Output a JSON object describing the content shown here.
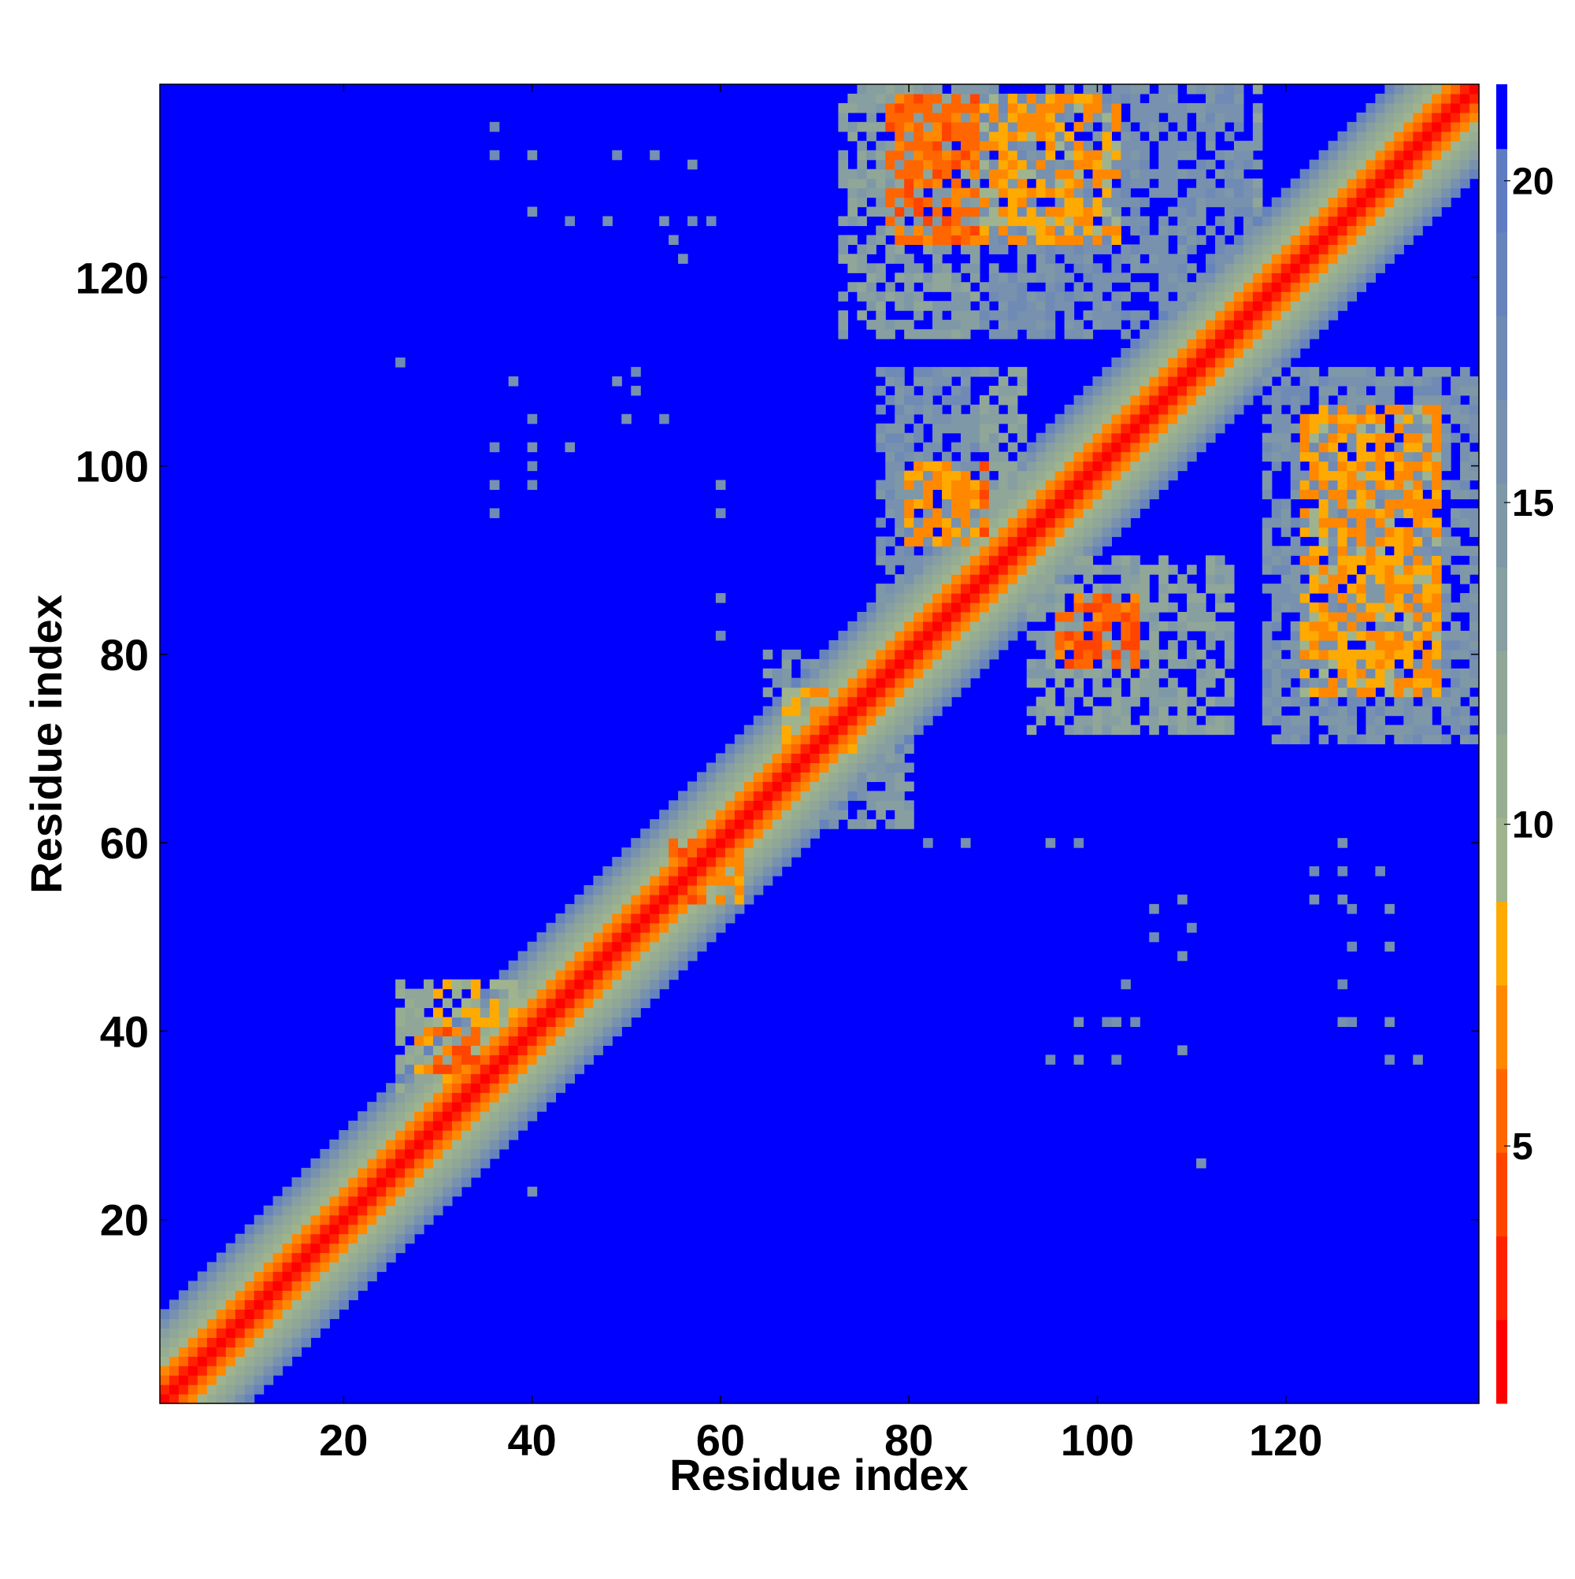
{
  "chart_data": {
    "type": "heatmap",
    "title": "",
    "xlabel": "Residue index",
    "ylabel": "Residue index",
    "xlim": [
      1,
      140
    ],
    "ylim": [
      1,
      140
    ],
    "x_ticks": [
      20,
      40,
      60,
      80,
      100,
      120
    ],
    "y_ticks": [
      20,
      40,
      60,
      80,
      100,
      120
    ],
    "colorbar": {
      "range": [
        1,
        21.5
      ],
      "ticks": [
        5,
        10,
        15,
        20
      ],
      "levels": [
        {
          "upper": 2.3,
          "color": "#ff0000"
        },
        {
          "upper": 3.6,
          "color": "#ff2200"
        },
        {
          "upper": 4.9,
          "color": "#ff4400"
        },
        {
          "upper": 6.2,
          "color": "#ff6600"
        },
        {
          "upper": 7.5,
          "color": "#ff8800"
        },
        {
          "upper": 8.8,
          "color": "#ffaa00"
        },
        {
          "upper": 10.1,
          "color": "#9fb48e"
        },
        {
          "upper": 11.4,
          "color": "#97ad92"
        },
        {
          "upper": 12.7,
          "color": "#8fa699"
        },
        {
          "upper": 14.0,
          "color": "#879fa0"
        },
        {
          "upper": 15.3,
          "color": "#7f98a7"
        },
        {
          "upper": 16.6,
          "color": "#7791ae"
        },
        {
          "upper": 17.9,
          "color": "#6f8ab5"
        },
        {
          "upper": 19.2,
          "color": "#6783bc"
        },
        {
          "upper": 20.5,
          "color": "#5f7cc3"
        },
        {
          "upper": 21.5,
          "color": "#0000ff"
        }
      ]
    },
    "background_color": "#0000ff",
    "diagonal_profile": [
      {
        "offset": 0,
        "value": 1.5
      },
      {
        "offset": 1,
        "value": 3.0
      },
      {
        "offset": 2,
        "value": 5.5
      },
      {
        "offset": 3,
        "value": 7.0
      },
      {
        "offset": 4,
        "value": 9.5
      },
      {
        "offset": 5,
        "value": 11.0
      },
      {
        "offset": 6,
        "value": 12.5
      },
      {
        "offset": 7,
        "value": 14.0
      },
      {
        "offset": 8,
        "value": 16.0
      },
      {
        "offset": 9,
        "value": 18.5
      }
    ],
    "contact_regions": [
      {
        "x": [
          26,
          38
        ],
        "y": [
          34,
          45
        ],
        "value": 11.5
      },
      {
        "x": [
          28,
          34
        ],
        "y": [
          36,
          40
        ],
        "value": 7.5
      },
      {
        "x": [
          55,
          62
        ],
        "y": [
          54,
          60
        ],
        "value": 8.0
      },
      {
        "x": [
          67,
          74
        ],
        "y": [
          70,
          76
        ],
        "value": 8.5
      },
      {
        "x": [
          65,
          80
        ],
        "y": [
          62,
          80
        ],
        "value": 15.0
      },
      {
        "x": [
          77,
          92
        ],
        "y": [
          85,
          110
        ],
        "value": 15.5
      },
      {
        "x": [
          80,
          88
        ],
        "y": [
          92,
          100
        ],
        "value": 7.5
      },
      {
        "x": [
          93,
          114
        ],
        "y": [
          72,
          90
        ],
        "value": 15.5
      },
      {
        "x": [
          96,
          104
        ],
        "y": [
          79,
          86
        ],
        "value": 7.5
      },
      {
        "x": [
          73,
          117
        ],
        "y": [
          114,
          140
        ],
        "value": 16.0
      },
      {
        "x": [
          78,
          102
        ],
        "y": [
          124,
          139
        ],
        "value": 8.0
      },
      {
        "x": [
          118,
          140
        ],
        "y": [
          71,
          110
        ],
        "value": 15.5
      },
      {
        "x": [
          122,
          136
        ],
        "y": [
          76,
          106
        ],
        "value": 8.0
      }
    ],
    "scattered_contacts": [
      {
        "x": 36,
        "y": 136,
        "value": 17.0
      },
      {
        "x": 36,
        "y": 133,
        "value": 17.0
      },
      {
        "x": 40,
        "y": 133,
        "value": 16.5
      },
      {
        "x": 40,
        "y": 127,
        "value": 16.5
      },
      {
        "x": 44,
        "y": 126,
        "value": 17.0
      },
      {
        "x": 48,
        "y": 126,
        "value": 16.5
      },
      {
        "x": 49,
        "y": 133,
        "value": 17.0
      },
      {
        "x": 53,
        "y": 133,
        "value": 16.5
      },
      {
        "x": 54,
        "y": 126,
        "value": 16.0
      },
      {
        "x": 55,
        "y": 124,
        "value": 16.0
      },
      {
        "x": 57,
        "y": 132,
        "value": 16.5
      },
      {
        "x": 57,
        "y": 126,
        "value": 17.0
      },
      {
        "x": 56,
        "y": 122,
        "value": 16.5
      },
      {
        "x": 59,
        "y": 126,
        "value": 17.0
      },
      {
        "x": 26,
        "y": 111,
        "value": 17.0
      },
      {
        "x": 38,
        "y": 109,
        "value": 16.5
      },
      {
        "x": 49,
        "y": 109,
        "value": 16.5
      },
      {
        "x": 51,
        "y": 110,
        "value": 17.0
      },
      {
        "x": 51,
        "y": 108,
        "value": 16.5
      },
      {
        "x": 50,
        "y": 105,
        "value": 16.5
      },
      {
        "x": 54,
        "y": 105,
        "value": 17.0
      },
      {
        "x": 40,
        "y": 105,
        "value": 17.0
      },
      {
        "x": 36,
        "y": 102,
        "value": 17.0
      },
      {
        "x": 40,
        "y": 102,
        "value": 16.5
      },
      {
        "x": 44,
        "y": 102,
        "value": 16.5
      },
      {
        "x": 40,
        "y": 100,
        "value": 17.0
      },
      {
        "x": 36,
        "y": 98,
        "value": 16.5
      },
      {
        "x": 40,
        "y": 98,
        "value": 17.0
      },
      {
        "x": 36,
        "y": 95,
        "value": 17.0
      },
      {
        "x": 60,
        "y": 98,
        "value": 16.5
      },
      {
        "x": 60,
        "y": 95,
        "value": 17.0
      },
      {
        "x": 60,
        "y": 86,
        "value": 16.5
      },
      {
        "x": 60,
        "y": 82,
        "value": 17.0
      },
      {
        "x": 40,
        "y": 23,
        "value": 16.5
      },
      {
        "x": 82,
        "y": 60,
        "value": 17.0
      },
      {
        "x": 86,
        "y": 60,
        "value": 16.5
      },
      {
        "x": 95,
        "y": 60,
        "value": 16.5
      },
      {
        "x": 98,
        "y": 60,
        "value": 17.0
      },
      {
        "x": 106,
        "y": 53,
        "value": 16.5
      },
      {
        "x": 106,
        "y": 50,
        "value": 17.0
      },
      {
        "x": 109,
        "y": 54,
        "value": 16.5
      },
      {
        "x": 110,
        "y": 51,
        "value": 17.0
      },
      {
        "x": 109,
        "y": 48,
        "value": 16.5
      },
      {
        "x": 103,
        "y": 45,
        "value": 17.0
      },
      {
        "x": 98,
        "y": 41,
        "value": 16.5
      },
      {
        "x": 101,
        "y": 41,
        "value": 17.0
      },
      {
        "x": 102,
        "y": 41,
        "value": 16.5
      },
      {
        "x": 104,
        "y": 41,
        "value": 17.0
      },
      {
        "x": 95,
        "y": 37,
        "value": 17.0
      },
      {
        "x": 98,
        "y": 37,
        "value": 16.5
      },
      {
        "x": 102,
        "y": 37,
        "value": 17.0
      },
      {
        "x": 109,
        "y": 38,
        "value": 16.5
      },
      {
        "x": 111,
        "y": 26,
        "value": 16.5
      },
      {
        "x": 123,
        "y": 57,
        "value": 17.0
      },
      {
        "x": 126,
        "y": 60,
        "value": 16.5
      },
      {
        "x": 126,
        "y": 57,
        "value": 17.0
      },
      {
        "x": 126,
        "y": 54,
        "value": 16.5
      },
      {
        "x": 130,
        "y": 57,
        "value": 17.0
      },
      {
        "x": 123,
        "y": 54,
        "value": 16.5
      },
      {
        "x": 127,
        "y": 53,
        "value": 17.0
      },
      {
        "x": 131,
        "y": 53,
        "value": 16.5
      },
      {
        "x": 127,
        "y": 49,
        "value": 17.0
      },
      {
        "x": 131,
        "y": 49,
        "value": 16.5
      },
      {
        "x": 126,
        "y": 45,
        "value": 17.0
      },
      {
        "x": 126,
        "y": 41,
        "value": 16.5
      },
      {
        "x": 127,
        "y": 41,
        "value": 17.0
      },
      {
        "x": 131,
        "y": 41,
        "value": 16.5
      },
      {
        "x": 131,
        "y": 37,
        "value": 17.0
      },
      {
        "x": 134,
        "y": 37,
        "value": 16.5
      }
    ]
  }
}
